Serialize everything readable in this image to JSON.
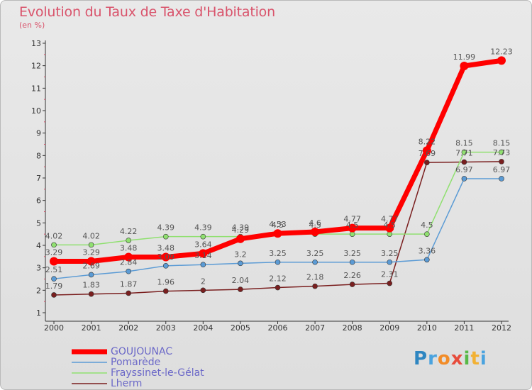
{
  "title": "Evolution du Taux de Taxe d'Habitation",
  "unit": "(en %)",
  "logo": {
    "text": "Proxiti",
    "letters": [
      {
        "ch": "P",
        "color": "#2e86c1"
      },
      {
        "ch": "r",
        "color": "#4aa3df"
      },
      {
        "ch": "o",
        "color": "#f28c28"
      },
      {
        "ch": "x",
        "color": "#e74c3c"
      },
      {
        "ch": "i",
        "color": "#58b947"
      },
      {
        "ch": "t",
        "color": "#f2b134"
      },
      {
        "ch": "i",
        "color": "#4aa3df"
      }
    ]
  },
  "chart_data": {
    "type": "line",
    "x": [
      "2000",
      "2001",
      "2002",
      "2003",
      "2004",
      "2005",
      "2006",
      "2007",
      "2008",
      "2009",
      "2010",
      "2011",
      "2012"
    ],
    "ylim": [
      1,
      13
    ],
    "yticks": [
      "1",
      "2",
      "3",
      "4",
      "5",
      "6",
      "7",
      "8",
      "9",
      "10",
      "11",
      "12",
      "13"
    ],
    "grid": false,
    "legend_position": "bottom-left",
    "series": [
      {
        "name": "GOUJOUNAC",
        "color": "#ff0000",
        "values": [
          3.29,
          3.29,
          3.48,
          3.48,
          3.64,
          4.29,
          4.53,
          4.6,
          4.77,
          4.77,
          8.22,
          11.99,
          12.23
        ],
        "labels": [
          "3.29",
          "3.29",
          "3.48",
          "3.48",
          "3.64",
          "4.29",
          "4.53",
          "4.6",
          "4.77",
          "4.77",
          "8.22",
          "11.99",
          "12.23"
        ]
      },
      {
        "name": "Pomarède",
        "color": "#5b9bd5",
        "values": [
          2.51,
          2.69,
          2.84,
          3.09,
          3.14,
          3.2,
          3.25,
          3.25,
          3.25,
          3.25,
          3.36,
          6.97,
          6.97
        ],
        "labels": [
          "2.51",
          "2.69",
          "2.84",
          "3.09",
          "3.14",
          "3.2",
          "3.25",
          "3.25",
          "3.25",
          "3.25",
          "3.36",
          "6.97",
          "6.97"
        ]
      },
      {
        "name": "Frayssinet-le-Gélat",
        "color": "#90e070",
        "values": [
          4.02,
          4.02,
          4.22,
          4.39,
          4.39,
          4.39,
          4.5,
          4.5,
          4.5,
          4.5,
          4.5,
          8.15,
          8.15
        ],
        "labels": [
          "4.02",
          "4.02",
          "4.22",
          "4.39",
          "4.39",
          "4.39",
          "4.5",
          "4.5",
          "4.5",
          "4.5",
          "4.5",
          "8.15",
          "8.15"
        ]
      },
      {
        "name": "Lherm",
        "color": "#7a1f1f",
        "values": [
          1.79,
          1.83,
          1.87,
          1.96,
          2,
          2.04,
          2.12,
          2.18,
          2.26,
          2.31,
          7.69,
          7.71,
          7.73
        ],
        "labels": [
          "1.79",
          "1.83",
          "1.87",
          "1.96",
          "2",
          "2.04",
          "2.12",
          "2.18",
          "2.26",
          "2.31",
          "7.69",
          "7.71",
          "7.73"
        ]
      }
    ]
  }
}
